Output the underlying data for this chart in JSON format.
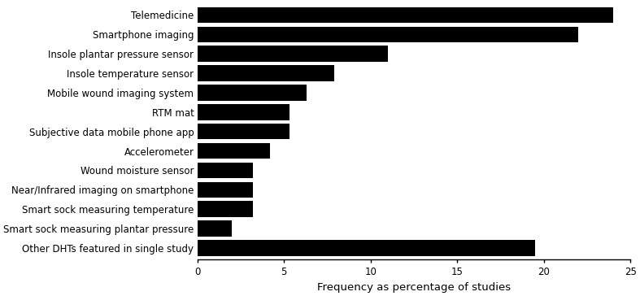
{
  "categories": [
    "Other DHTs featured in single study",
    "Smart sock measuring plantar pressure",
    "Smart sock measuring temperature",
    "Near/Infrared imaging on smartphone",
    "Wound moisture sensor",
    "Accelerometer",
    "Subjective data mobile phone app",
    "RTM mat",
    "Mobile wound imaging system",
    "Insole temperature sensor",
    "Insole plantar pressure sensor",
    "Smartphone imaging",
    "Telemedicine"
  ],
  "values": [
    19.5,
    2.0,
    3.2,
    3.2,
    3.2,
    4.2,
    5.3,
    5.3,
    6.3,
    7.9,
    11.0,
    22.0,
    24.0
  ],
  "bar_color": "#000000",
  "xlabel": "Frequency as percentage of studies",
  "xlim": [
    0,
    25
  ],
  "xticks": [
    0,
    5,
    10,
    15,
    20,
    25
  ],
  "background_color": "#ffffff",
  "bar_height": 0.82,
  "tick_fontsize": 8.5,
  "xlabel_fontsize": 9.5
}
